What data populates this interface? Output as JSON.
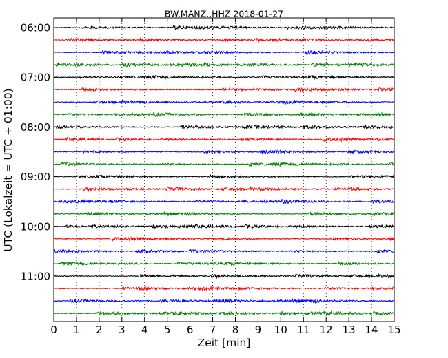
{
  "chart_data": {
    "type": "line",
    "title": "BW.MANZ..HHZ 2018-01-27",
    "xlabel": "Zeit  [min]",
    "ylabel": "UTC (Lokalzeit = UTC + 01:00)",
    "xlim": [
      0,
      15
    ],
    "x_ticks": [
      "0",
      "1",
      "2",
      "3",
      "4",
      "5",
      "6",
      "7",
      "8",
      "9",
      "10",
      "11",
      "12",
      "13",
      "14",
      "15"
    ],
    "y_ticks": [
      "06:00",
      "07:00",
      "08:00",
      "09:00",
      "10:00",
      "11:00"
    ],
    "grid": "vertical dotted",
    "trace_interval_min": 15,
    "trace_colors": [
      "#000000",
      "#ff0000",
      "#0000ff",
      "#008000"
    ],
    "traces": [
      {
        "start": "06:00",
        "color": "#000000"
      },
      {
        "start": "06:15",
        "color": "#ff0000"
      },
      {
        "start": "06:30",
        "color": "#0000ff"
      },
      {
        "start": "06:45",
        "color": "#008000"
      },
      {
        "start": "07:00",
        "color": "#000000"
      },
      {
        "start": "07:15",
        "color": "#ff0000"
      },
      {
        "start": "07:30",
        "color": "#0000ff"
      },
      {
        "start": "07:45",
        "color": "#008000"
      },
      {
        "start": "08:00",
        "color": "#000000"
      },
      {
        "start": "08:15",
        "color": "#ff0000"
      },
      {
        "start": "08:30",
        "color": "#0000ff"
      },
      {
        "start": "08:45",
        "color": "#008000"
      },
      {
        "start": "09:00",
        "color": "#000000"
      },
      {
        "start": "09:15",
        "color": "#ff0000"
      },
      {
        "start": "09:30",
        "color": "#0000ff"
      },
      {
        "start": "09:45",
        "color": "#008000"
      },
      {
        "start": "10:00",
        "color": "#000000"
      },
      {
        "start": "10:15",
        "color": "#ff0000"
      },
      {
        "start": "10:30",
        "color": "#0000ff"
      },
      {
        "start": "10:45",
        "color": "#008000"
      },
      {
        "start": "11:00",
        "color": "#000000"
      },
      {
        "start": "11:15",
        "color": "#ff0000"
      },
      {
        "start": "11:30",
        "color": "#0000ff"
      },
      {
        "start": "11:45",
        "color": "#008000"
      }
    ]
  }
}
